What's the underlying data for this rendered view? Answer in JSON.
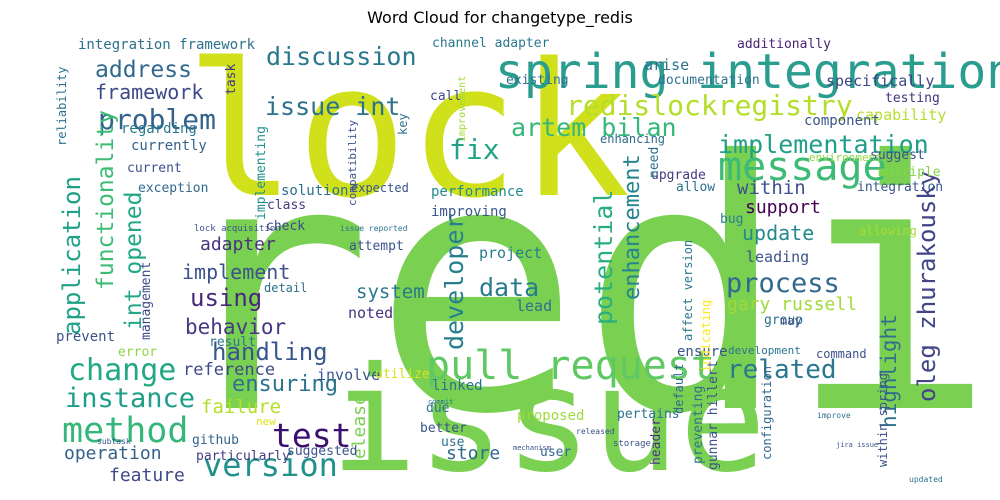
{
  "chart_data": {
    "type": "wordcloud",
    "title": "Word Cloud for changetype_redis",
    "words": [
      {
        "text": "redis",
        "color": "#7ad151"
      },
      {
        "text": "lock",
        "color": "#d0e11c"
      },
      {
        "text": "issue",
        "color": "#7ad151"
      },
      {
        "text": "spring integration",
        "color": "#2a9d8f"
      },
      {
        "text": "message",
        "color": "#3bbb75"
      },
      {
        "text": "pull request",
        "color": "#5ec962"
      },
      {
        "text": "change",
        "color": "#22a884"
      },
      {
        "text": "method",
        "color": "#35b779"
      },
      {
        "text": "version",
        "color": "#21918c"
      },
      {
        "text": "test",
        "color": "#3b0f70"
      },
      {
        "text": "instance",
        "color": "#1f9e89"
      },
      {
        "text": "issue int",
        "color": "#2c728e"
      },
      {
        "text": "redislockregistry",
        "color": "#b5de2b"
      },
      {
        "text": "problem",
        "color": "#33638d"
      },
      {
        "text": "address",
        "color": "#31688e"
      },
      {
        "text": "framework",
        "color": "#3e4a89"
      },
      {
        "text": "discussion",
        "color": "#2a788e"
      },
      {
        "text": "artem bilan",
        "color": "#35b779"
      },
      {
        "text": "implementation",
        "color": "#1f9e89"
      },
      {
        "text": "fix",
        "color": "#20a386"
      },
      {
        "text": "application",
        "color": "#1fa188"
      },
      {
        "text": "functionality",
        "color": "#3dbc74"
      },
      {
        "text": "int opened",
        "color": "#22a884"
      },
      {
        "text": "potential",
        "color": "#29af7f"
      },
      {
        "text": "enhancement",
        "color": "#25858e"
      },
      {
        "text": "developer",
        "color": "#277f8e"
      },
      {
        "text": "data",
        "color": "#287c8e"
      },
      {
        "text": "process",
        "color": "#31688e"
      },
      {
        "text": "related",
        "color": "#2a788e"
      },
      {
        "text": "oleg zhurakousky",
        "color": "#414487"
      },
      {
        "text": "highlight",
        "color": "#2d708e"
      },
      {
        "text": "handling",
        "color": "#39568c"
      },
      {
        "text": "using",
        "color": "#482878"
      },
      {
        "text": "behavior",
        "color": "#443983"
      },
      {
        "text": "ensuring",
        "color": "#2c728e"
      },
      {
        "text": "implement",
        "color": "#3b528b"
      },
      {
        "text": "adapter",
        "color": "#46337e"
      },
      {
        "text": "reference",
        "color": "#3e4989"
      },
      {
        "text": "failure",
        "color": "#b5de2b"
      },
      {
        "text": "system",
        "color": "#2a788e"
      },
      {
        "text": "update",
        "color": "#23898e"
      },
      {
        "text": "support",
        "color": "#440154"
      },
      {
        "text": "within",
        "color": "#3b528b"
      },
      {
        "text": "gary russell",
        "color": "#a0da39"
      },
      {
        "text": "release",
        "color": "#7ad151"
      },
      {
        "text": "store",
        "color": "#31688e"
      },
      {
        "text": "operation",
        "color": "#33638d"
      },
      {
        "text": "feature",
        "color": "#3e4989"
      },
      {
        "text": "leading",
        "color": "#3b528b"
      },
      {
        "text": "project",
        "color": "#287d8e"
      },
      {
        "text": "noted",
        "color": "#46327e"
      },
      {
        "text": "lead",
        "color": "#2d708e"
      },
      {
        "text": "involve",
        "color": "#39558c"
      },
      {
        "text": "capability",
        "color": "#b8de29"
      },
      {
        "text": "specifically",
        "color": "#3f4788"
      },
      {
        "text": "integration framework",
        "color": "#2c728e"
      },
      {
        "text": "currently",
        "color": "#33638d"
      },
      {
        "text": "regarding",
        "color": "#2a788e"
      },
      {
        "text": "current",
        "color": "#3b528b"
      },
      {
        "text": "exception",
        "color": "#31688e"
      },
      {
        "text": "solution",
        "color": "#2c728e"
      },
      {
        "text": "performance",
        "color": "#228c8d"
      },
      {
        "text": "improving",
        "color": "#38588c"
      },
      {
        "text": "expected",
        "color": "#3b528b"
      },
      {
        "text": "upgrade",
        "color": "#443a83"
      },
      {
        "text": "allow",
        "color": "#2c728e"
      },
      {
        "text": "bug",
        "color": "#277f8e"
      },
      {
        "text": "integration",
        "color": "#39568c"
      },
      {
        "text": "multiple",
        "color": "#84d44b"
      },
      {
        "text": "suggest",
        "color": "#3b528b"
      },
      {
        "text": "environment",
        "color": "#8fd744"
      },
      {
        "text": "component",
        "color": "#39568c"
      },
      {
        "text": "testing",
        "color": "#46327e"
      },
      {
        "text": "documentation",
        "color": "#2c728e"
      },
      {
        "text": "additionally",
        "color": "#482475"
      },
      {
        "text": "arise",
        "color": "#2d718e"
      },
      {
        "text": "channel adapter",
        "color": "#2a788e"
      },
      {
        "text": "existing",
        "color": "#2c728e"
      },
      {
        "text": "call",
        "color": "#3f4788"
      },
      {
        "text": "need",
        "color": "#2c728e"
      },
      {
        "text": "enhancing",
        "color": "#31688e"
      },
      {
        "text": "task",
        "color": "#453781"
      },
      {
        "text": "implementing",
        "color": "#21918c"
      },
      {
        "text": "class",
        "color": "#433d84"
      },
      {
        "text": "check",
        "color": "#3e4989"
      },
      {
        "text": "attempt",
        "color": "#3b528b"
      },
      {
        "text": "detail",
        "color": "#2c728e"
      },
      {
        "text": "result",
        "color": "#2a788e"
      },
      {
        "text": "prevent",
        "color": "#3b528b"
      },
      {
        "text": "error",
        "color": "#8bd646"
      },
      {
        "text": "management",
        "color": "#3e4989"
      },
      {
        "text": "github",
        "color": "#33638d"
      },
      {
        "text": "particularly",
        "color": "#433e85"
      },
      {
        "text": "suggested",
        "color": "#3b528b"
      },
      {
        "text": "due",
        "color": "#2c728e"
      },
      {
        "text": "better",
        "color": "#3b528b"
      },
      {
        "text": "use",
        "color": "#2c728e"
      },
      {
        "text": "proposed",
        "color": "#9fda3a"
      },
      {
        "text": "user",
        "color": "#31688e"
      },
      {
        "text": "linked",
        "color": "#2c728e"
      },
      {
        "text": "utilize",
        "color": "#d8e219"
      },
      {
        "text": "pertains",
        "color": "#2c728e"
      },
      {
        "text": "ensure",
        "color": "#3b528b"
      },
      {
        "text": "gunnar hillert",
        "color": "#3b528b"
      },
      {
        "text": "header",
        "color": "#46327e"
      },
      {
        "text": "default",
        "color": "#31688e"
      },
      {
        "text": "preventing",
        "color": "#2c728e"
      },
      {
        "text": "indicating",
        "color": "#fde725"
      },
      {
        "text": "affect version",
        "color": "#2a788e"
      },
      {
        "text": "group",
        "color": "#2c728e"
      },
      {
        "text": "may",
        "color": "#3b528b"
      },
      {
        "text": "development",
        "color": "#2c728e"
      },
      {
        "text": "command",
        "color": "#3b528b"
      },
      {
        "text": "configuration",
        "color": "#31688e"
      },
      {
        "text": "within spring",
        "color": "#3b528b"
      },
      {
        "text": "allowing",
        "color": "#a8db34"
      },
      {
        "text": "reliability",
        "color": "#2c728e"
      },
      {
        "text": "new",
        "color": "#dde318"
      },
      {
        "text": "key",
        "color": "#2c728e"
      },
      {
        "text": "compatibility",
        "color": "#3b528b"
      },
      {
        "text": "improvement",
        "color": "#a2da37"
      },
      {
        "text": "lock acquisition",
        "color": "#3b528b"
      },
      {
        "text": "issue reported",
        "color": "#2c728e"
      },
      {
        "text": "storage",
        "color": "#3b528b"
      },
      {
        "text": "released",
        "color": "#3b528b"
      },
      {
        "text": "mechanism",
        "color": "#3b528b"
      },
      {
        "text": "commit",
        "color": "#2c728e"
      },
      {
        "text": "subtask",
        "color": "#3b528b"
      },
      {
        "text": "improve",
        "color": "#2c728e"
      },
      {
        "text": "updated",
        "color": "#2c728e"
      },
      {
        "text": "jira issue",
        "color": "#3b528b"
      }
    ]
  }
}
